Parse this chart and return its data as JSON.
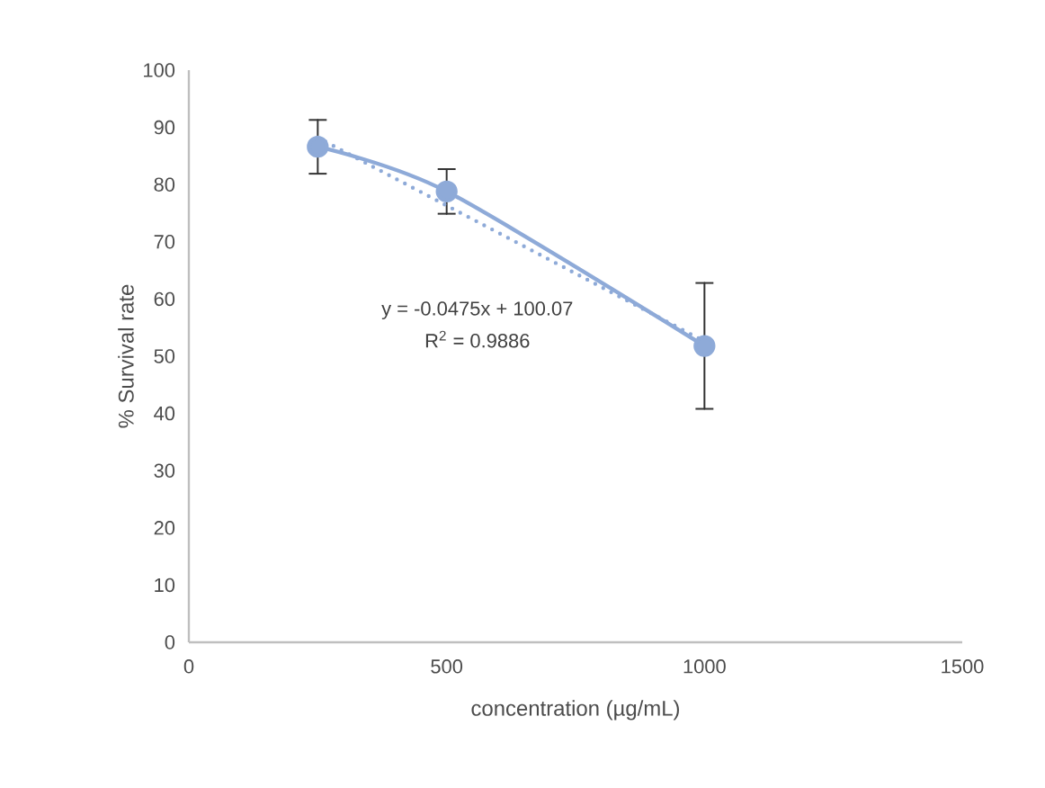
{
  "chart_data": {
    "type": "line",
    "xlabel": "concentration (µg/mL)",
    "ylabel": "% Survival rate",
    "xlim": [
      0,
      1500
    ],
    "xticks": [
      0,
      500,
      1000,
      1500
    ],
    "ylim": [
      0,
      100
    ],
    "yticks": [
      0,
      10,
      20,
      30,
      40,
      50,
      60,
      70,
      80,
      90,
      100
    ],
    "grid": false,
    "series": [
      {
        "marker": "circle",
        "line_style": "solid",
        "color": "#8eaad8",
        "x": [
          250,
          500,
          1000
        ],
        "values": [
          86.6,
          78.8,
          51.8
        ],
        "errors": [
          4.7,
          3.9,
          11
        ]
      },
      {
        "type": "line",
        "marker": "none",
        "line_style": "dotted",
        "color": "#8eaad8",
        "x": [
          250,
          1000
        ],
        "values": [
          88.2,
          52.6
        ]
      }
    ],
    "annotations": [
      "y = -0.0475x + 100.07",
      "R$^{2}$ = 0.9886"
    ]
  }
}
